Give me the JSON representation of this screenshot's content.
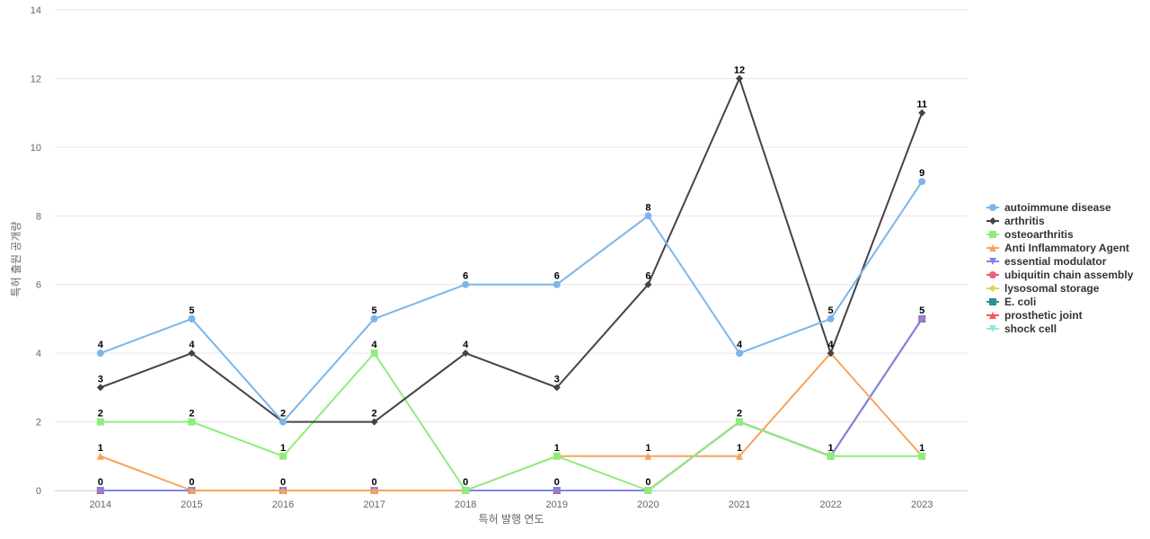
{
  "chart_data": {
    "type": "line",
    "title": "",
    "xlabel": "특허 발행 연도",
    "ylabel": "특허 출원 공개량",
    "categories": [
      "2014",
      "2015",
      "2016",
      "2017",
      "2018",
      "2019",
      "2020",
      "2021",
      "2022",
      "2023"
    ],
    "ylim": [
      0,
      14
    ],
    "yticks": [
      0,
      2,
      4,
      6,
      8,
      10,
      12,
      14
    ],
    "grid": true,
    "legend_position": "right",
    "series": [
      {
        "name": "autoimmune disease",
        "color": "#7cb5ec",
        "marker": "circle",
        "values": [
          4,
          5,
          2,
          5,
          6,
          6,
          8,
          4,
          5,
          9
        ]
      },
      {
        "name": "arthritis",
        "color": "#434348",
        "marker": "diamond",
        "values": [
          3,
          4,
          2,
          2,
          4,
          3,
          6,
          12,
          4,
          11
        ]
      },
      {
        "name": "osteoarthritis",
        "color": "#90ed7d",
        "marker": "square",
        "values": [
          2,
          2,
          1,
          4,
          0,
          1,
          0,
          2,
          1,
          1
        ]
      },
      {
        "name": "Anti Inflammatory Agent",
        "color": "#f7a35c",
        "marker": "triangle",
        "values": [
          1,
          0,
          0,
          0,
          0,
          1,
          1,
          1,
          4,
          1
        ]
      },
      {
        "name": "essential modulator",
        "color": "#8085e9",
        "marker": "triangle-down",
        "values": [
          0,
          0,
          0,
          0,
          0,
          0,
          0,
          2,
          1,
          5
        ]
      },
      {
        "name": "ubiquitin chain assembly",
        "color": "#f15c80",
        "marker": "circle",
        "values": [
          0,
          0,
          0,
          0,
          0,
          0,
          0,
          2,
          1,
          5
        ]
      },
      {
        "name": "lysosomal storage",
        "color": "#e4d354",
        "marker": "diamond",
        "values": [
          0,
          0,
          0,
          0,
          0,
          0,
          0,
          2,
          1,
          5
        ]
      },
      {
        "name": "E. coli",
        "color": "#2b908f",
        "marker": "square",
        "values": [
          0,
          0,
          0,
          0,
          0,
          0,
          0,
          2,
          1,
          5
        ]
      },
      {
        "name": "prosthetic joint",
        "color": "#f45b5b",
        "marker": "triangle",
        "values": [
          0,
          0,
          0,
          0,
          0,
          0,
          0,
          2,
          1,
          5
        ]
      },
      {
        "name": "shock cell",
        "color": "#91e8e1",
        "marker": "triangle-down",
        "values": [
          0,
          0,
          0,
          0,
          0,
          0,
          0,
          2,
          1,
          5
        ]
      }
    ],
    "data_labels": {
      "autoimmune disease": [
        4,
        5,
        2,
        5,
        6,
        6,
        8,
        4,
        5,
        9
      ],
      "arthritis": [
        3,
        4,
        null,
        2,
        4,
        3,
        6,
        12,
        4,
        11
      ],
      "osteoarthritis": [
        2,
        2,
        1,
        4,
        null,
        1,
        null,
        null,
        null,
        null
      ],
      "Anti Inflammatory Agent": [
        1,
        null,
        null,
        null,
        null,
        null,
        1,
        1,
        null,
        1
      ],
      "shock cell": [
        0,
        0,
        0,
        0,
        0,
        0,
        0,
        2,
        1,
        5
      ]
    }
  }
}
